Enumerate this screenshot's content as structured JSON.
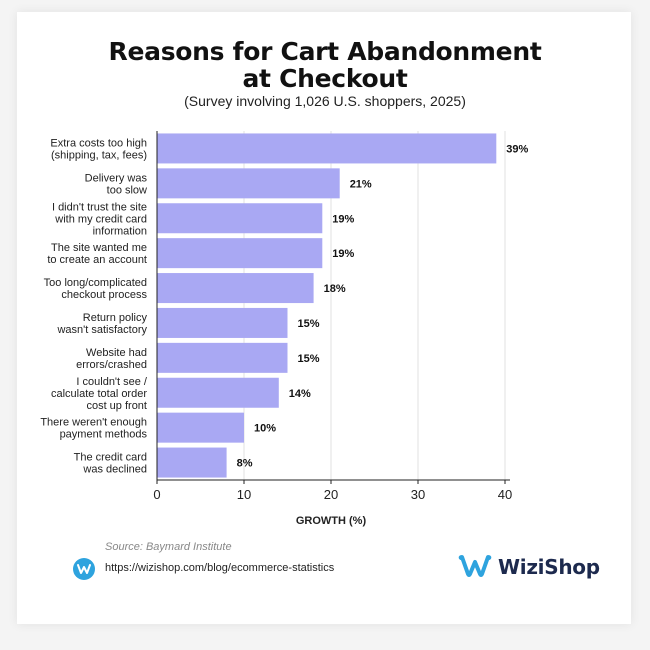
{
  "header": {
    "title_line1": "Reasons for Cart Abandonment",
    "title_line2": "at Checkout",
    "subtitle": "(Survey involving 1,026 U.S. shoppers, 2025)"
  },
  "footer": {
    "source": "Source: Baymard Institute",
    "url": "https://wizishop.com/blog/ecommerce-statistics",
    "brand": "WiziShop",
    "brand_color": "#2ea3de"
  },
  "chart_data": {
    "type": "bar",
    "orientation": "horizontal",
    "categories": [
      [
        "Extra costs too high",
        "(shipping, tax, fees)"
      ],
      [
        "Delivery was",
        "too slow"
      ],
      [
        "I didn't trust the site",
        "with my credit card",
        "information"
      ],
      [
        "The site wanted me",
        "to create an account"
      ],
      [
        "Too long/complicated",
        "checkout process"
      ],
      [
        "Return policy",
        "wasn't satisfactory"
      ],
      [
        "Website had",
        "errors/crashed"
      ],
      [
        "I couldn't see /",
        "calculate total order",
        "cost up front"
      ],
      [
        "There weren't enough",
        "payment methods"
      ],
      [
        "The credit card",
        "was declined"
      ]
    ],
    "values": [
      39,
      21,
      19,
      19,
      18,
      15,
      15,
      14,
      10,
      8
    ],
    "value_labels": [
      "39%",
      "21%",
      "19%",
      "19%",
      "18%",
      "15%",
      "15%",
      "14%",
      "10%",
      "8%"
    ],
    "xlabel": "GROWTH (%)",
    "xlim": [
      0,
      40
    ],
    "xticks": [
      0,
      10,
      20,
      30,
      40
    ],
    "grid": "vertical",
    "bar_color": "#a9a8f3"
  }
}
